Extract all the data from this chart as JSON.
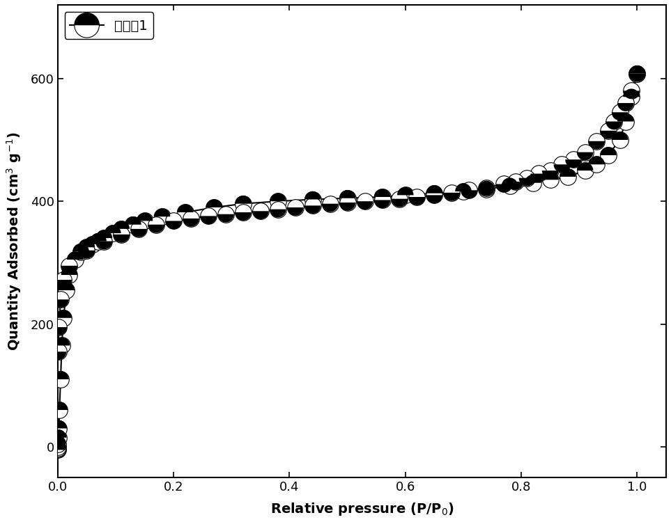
{
  "title": "",
  "xlabel": "Relative pressure (P/P$_0$)",
  "ylabel": "Quantity Adsorbed (cm$^3$ g$^{-1}$)",
  "legend_label": "实施例1",
  "xlim": [
    0,
    1.05
  ],
  "ylim": [
    -50,
    720
  ],
  "yticks": [
    0,
    200,
    400,
    600
  ],
  "xticks": [
    0.0,
    0.2,
    0.4,
    0.6,
    0.8,
    1.0
  ],
  "adsorption_x": [
    1e-06,
    5e-05,
    0.0001,
    0.0002,
    0.0005,
    0.001,
    0.002,
    0.003,
    0.005,
    0.007,
    0.01,
    0.015,
    0.02,
    0.03,
    0.04,
    0.05,
    0.06,
    0.07,
    0.08,
    0.095,
    0.11,
    0.13,
    0.15,
    0.18,
    0.22,
    0.27,
    0.32,
    0.38,
    0.44,
    0.5,
    0.56,
    0.6,
    0.65,
    0.7,
    0.74,
    0.78,
    0.82,
    0.85,
    0.88,
    0.91,
    0.93,
    0.95,
    0.97,
    0.98,
    0.99,
    1.0
  ],
  "adsorption_y": [
    -5,
    -3,
    -2,
    0,
    5,
    15,
    30,
    60,
    110,
    165,
    210,
    255,
    280,
    305,
    318,
    325,
    330,
    335,
    340,
    348,
    355,
    362,
    368,
    375,
    382,
    390,
    396,
    400,
    403,
    405,
    407,
    410,
    413,
    416,
    420,
    425,
    430,
    435,
    440,
    450,
    460,
    475,
    500,
    530,
    570,
    608
  ],
  "desorption_x": [
    1.0,
    0.99,
    0.98,
    0.97,
    0.96,
    0.95,
    0.93,
    0.91,
    0.89,
    0.87,
    0.85,
    0.83,
    0.81,
    0.79,
    0.77,
    0.74,
    0.71,
    0.68,
    0.65,
    0.62,
    0.59,
    0.56,
    0.53,
    0.5,
    0.47,
    0.44,
    0.41,
    0.38,
    0.35,
    0.32,
    0.29,
    0.26,
    0.23,
    0.2,
    0.17,
    0.14,
    0.11,
    0.08,
    0.05,
    0.02,
    0.01,
    0.005,
    0.002,
    0.001
  ],
  "desorption_y": [
    608,
    580,
    560,
    545,
    530,
    515,
    498,
    480,
    468,
    460,
    450,
    445,
    438,
    432,
    428,
    422,
    418,
    414,
    410,
    407,
    404,
    402,
    400,
    398,
    396,
    393,
    390,
    387,
    384,
    382,
    379,
    376,
    372,
    368,
    362,
    355,
    346,
    335,
    320,
    295,
    272,
    240,
    195,
    155
  ],
  "marker_size": 12,
  "linewidth": 1.5,
  "background_color": "#ffffff",
  "axis_color": "#000000",
  "label_fontsize": 14,
  "tick_fontsize": 13,
  "legend_fontsize": 14
}
